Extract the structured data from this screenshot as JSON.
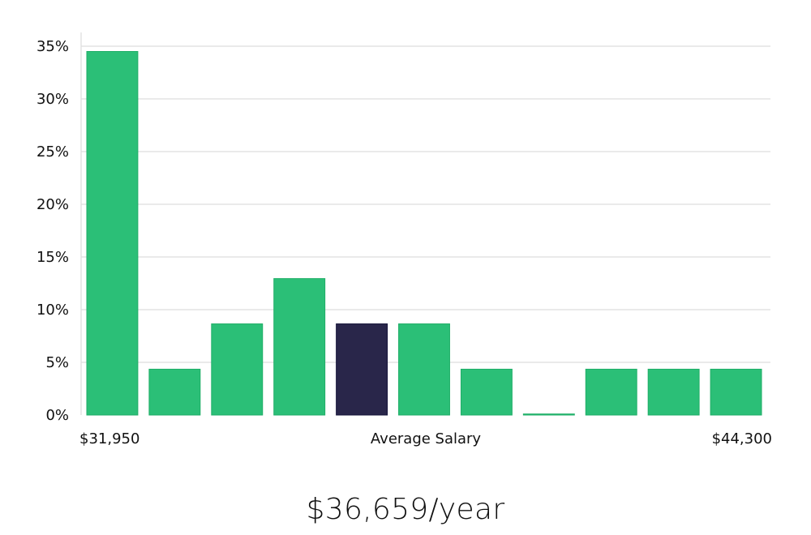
{
  "chart_data": {
    "type": "bar",
    "categories": [
      "1",
      "2",
      "3",
      "4",
      "5",
      "6",
      "7",
      "8",
      "9",
      "10",
      "11"
    ],
    "values": [
      34.5,
      4.35,
      8.65,
      12.95,
      8.65,
      8.65,
      4.35,
      0.1,
      4.35,
      4.35,
      4.35
    ],
    "highlight_index": 4,
    "ylim": [
      0,
      35
    ],
    "yticks": [
      0,
      5,
      10,
      15,
      20,
      25,
      30,
      35
    ],
    "ytick_suffix": "%",
    "grid": true,
    "xlabel_left": "$31,950",
    "xlabel_center": "Average Salary",
    "xlabel_right": "$44,300",
    "colors": {
      "bar": "#2bbf77",
      "bar_stroke": "#1fae67",
      "highlight": "#29264a",
      "highlight_stroke": "#15143a",
      "grid": "#e3e3e3",
      "axis": "#dddddd"
    }
  },
  "salary_display": "$36,659/year"
}
